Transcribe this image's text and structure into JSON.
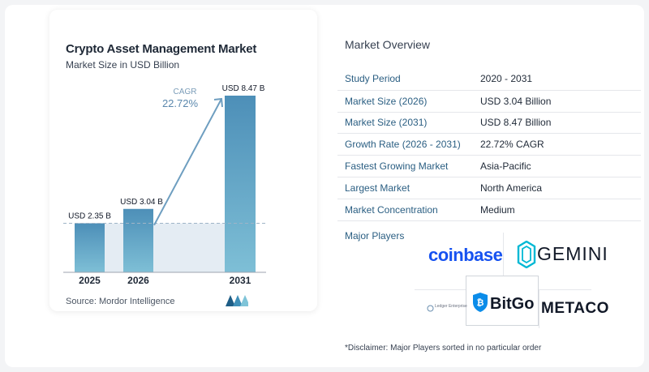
{
  "chart_data": {
    "type": "bar",
    "title": "Crypto Asset Management Market",
    "subtitle": "Market Size in USD Billion",
    "categories": [
      "2025",
      "2026",
      "2031"
    ],
    "values": [
      2.35,
      3.04,
      8.47
    ],
    "value_labels": [
      "USD 2.35 B",
      "USD 3.04 B",
      "USD 8.47 B"
    ],
    "cagr_label": "CAGR",
    "cagr_value": "22.72%",
    "ylim": [
      0,
      8.47
    ],
    "grid": false,
    "colors": {
      "bar_top": "#4d8fb8",
      "bar_bottom": "#7ebfd6",
      "band": "#e4ecf3",
      "arrow": "#6e9ec0"
    }
  },
  "source": "Source:  Mordor Intelligence",
  "overview": {
    "title": "Market Overview",
    "rows": [
      {
        "label": "Study Period",
        "value": "2020 - 2031"
      },
      {
        "label": "Market Size (2026)",
        "value": "USD 3.04 Billion"
      },
      {
        "label": "Market Size (2031)",
        "value": "USD 8.47 Billion"
      },
      {
        "label": "Growth Rate (2026 - 2031)",
        "value": "22.72% CAGR"
      },
      {
        "label": "Fastest Growing Market",
        "value": "Asia-Pacific"
      },
      {
        "label": "Largest Market",
        "value": "North America"
      },
      {
        "label": "Market Concentration",
        "value": "Medium"
      }
    ]
  },
  "players": {
    "label": "Major Players",
    "logos": [
      "coinbase",
      "GEMINI",
      "BitGo",
      "METACO",
      "Ledger Enterprise"
    ]
  },
  "disclaimer": "*Disclaimer: Major Players sorted in no particular order"
}
